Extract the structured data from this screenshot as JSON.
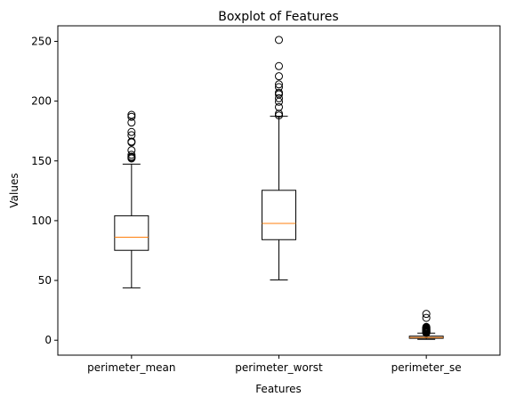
{
  "chart_data": {
    "type": "boxplot",
    "title": "Boxplot of Features",
    "xlabel": "Features",
    "ylabel": "Values",
    "ylim": [
      -12.5,
      263
    ],
    "yticks": [
      0,
      50,
      100,
      150,
      200,
      250
    ],
    "grid": false,
    "colors": {
      "box": "#000000",
      "median": "#ff7f0e",
      "background": "#ffffff"
    },
    "boxes": [
      {
        "name": "perimeter_mean",
        "whisker_low": 43.8,
        "q1": 75.2,
        "median": 86.2,
        "q3": 104.1,
        "whisker_high": 147.3,
        "outliers": [
          152.1,
          152.8,
          153.5,
          155.1,
          158.9,
          165.5,
          166.2,
          171.5,
          174.2,
          182.1,
          186.9,
          188.5
        ]
      },
      {
        "name": "perimeter_worst",
        "whisker_low": 50.4,
        "q1": 84.1,
        "median": 97.7,
        "q3": 125.4,
        "whisker_high": 187.3,
        "outliers": [
          188.0,
          189.5,
          195.0,
          199.5,
          202.4,
          205.7,
          207.0,
          211.7,
          214.0,
          220.8,
          229.3,
          251.2
        ]
      },
      {
        "name": "perimeter_se",
        "whisker_low": 0.76,
        "q1": 1.6,
        "median": 2.3,
        "q3": 3.4,
        "whisker_high": 5.9,
        "outliers": [
          6.1,
          6.3,
          6.5,
          6.8,
          7.0,
          7.2,
          7.5,
          7.7,
          8.0,
          8.3,
          8.6,
          8.9,
          9.2,
          9.6,
          10.0,
          10.1,
          10.7,
          11.1,
          18.7,
          22.0
        ]
      }
    ]
  }
}
